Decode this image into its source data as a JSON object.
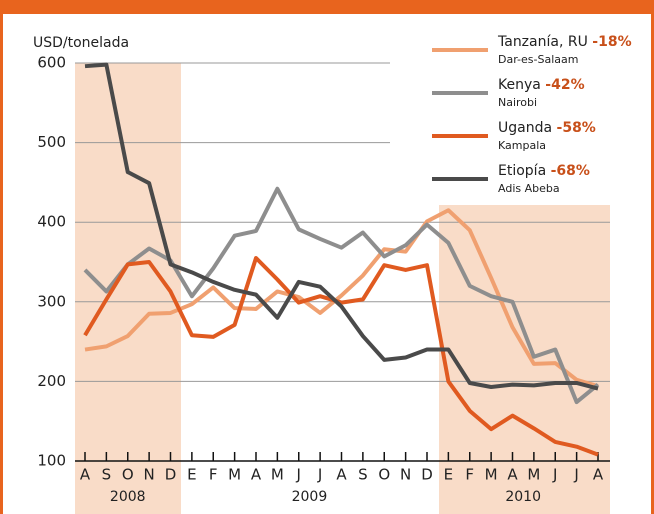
{
  "chart_data": {
    "type": "line",
    "y_label": "USD/tonelada",
    "categories": [
      "A",
      "S",
      "O",
      "N",
      "D",
      "E",
      "F",
      "M",
      "A",
      "M",
      "J",
      "J",
      "A",
      "S",
      "O",
      "N",
      "D",
      "E",
      "F",
      "M",
      "A",
      "M",
      "J",
      "J",
      "A"
    ],
    "years": [
      "2008",
      "2009",
      "2010"
    ],
    "ylim": [
      100,
      600
    ],
    "yticks": [
      100,
      200,
      300,
      400,
      500,
      600
    ],
    "grid": true,
    "series": [
      {
        "name": "Tanzanía, RU",
        "change": "-18%",
        "city": "Dar-es-Salaam",
        "color": "#f0a070",
        "values": [
          240,
          244,
          257,
          285,
          286,
          297,
          318,
          292,
          291,
          313,
          306,
          286,
          308,
          333,
          366,
          363,
          401,
          415,
          390,
          330,
          268,
          222,
          223,
          202,
          194
        ]
      },
      {
        "name": "Kenya",
        "change": "-42%",
        "city": "Nairobi",
        "color": "#8e8e8e",
        "values": [
          340,
          313,
          347,
          367,
          352,
          307,
          342,
          383,
          389,
          442,
          391,
          379,
          368,
          387,
          357,
          371,
          397,
          374,
          320,
          307,
          300,
          231,
          240,
          174,
          196
        ]
      },
      {
        "name": "Uganda",
        "change": "-58%",
        "city": "Kampala",
        "color": "#e05a20",
        "values": [
          258,
          303,
          347,
          350,
          313,
          258,
          256,
          271,
          355,
          328,
          299,
          307,
          299,
          303,
          346,
          340,
          346,
          200,
          163,
          140,
          157,
          141,
          124,
          118,
          108
        ]
      },
      {
        "name": "Etiopía",
        "change": "-68%",
        "city": "Adis Abeba",
        "color": "#4a4a4a",
        "values": [
          596,
          598,
          463,
          449,
          347,
          337,
          325,
          315,
          309,
          280,
          325,
          319,
          294,
          257,
          227,
          230,
          240,
          240,
          198,
          193,
          196,
          195,
          198,
          198,
          191
        ]
      }
    ]
  }
}
